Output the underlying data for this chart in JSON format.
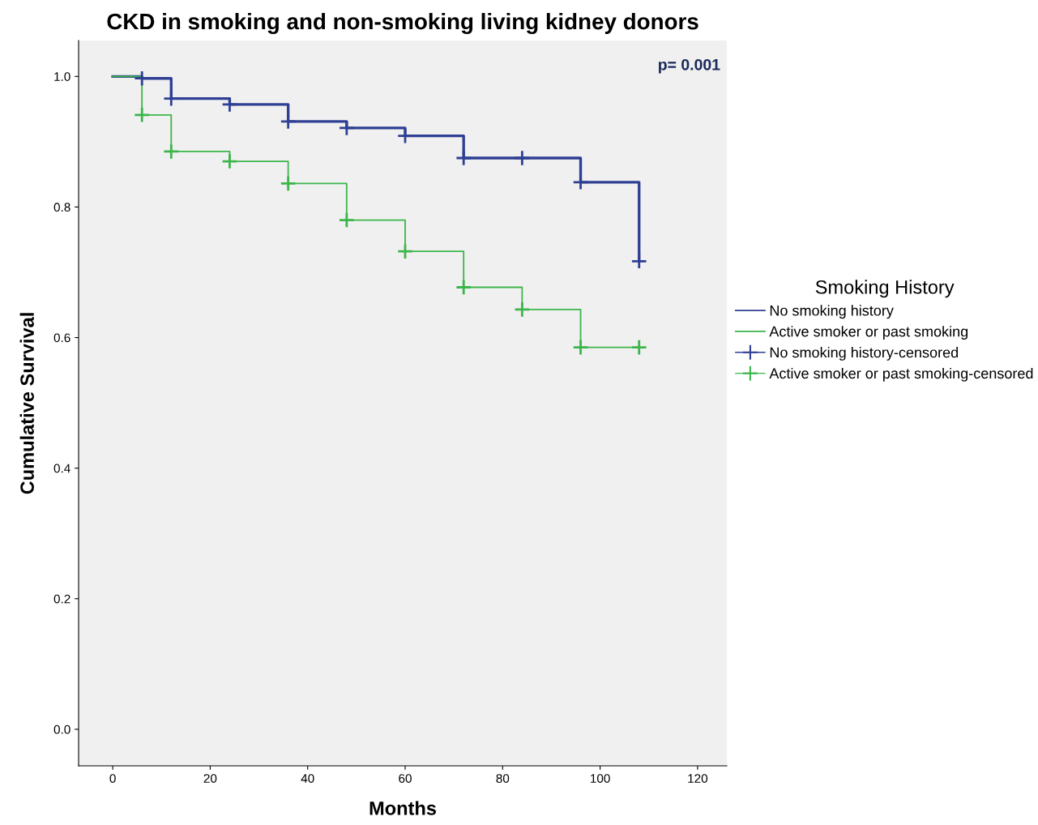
{
  "chart_data": {
    "type": "step",
    "title": "CKD in smoking and non-smoking living kidney donors",
    "xlabel": "Months",
    "ylabel": "Cumulative Survival",
    "legend_title": "Smoking History",
    "legend": "right",
    "grid": false,
    "annotations": [
      "p= 0.001"
    ],
    "xlim": [
      -7,
      126
    ],
    "ylim": [
      -0.056,
      1.055
    ],
    "xticks": [
      0,
      20,
      40,
      60,
      80,
      100,
      120
    ],
    "yticks": [
      {
        "value": 0,
        "label": "0.0"
      },
      {
        "value": 0.2,
        "label": "0.2"
      },
      {
        "value": 0.4,
        "label": "0.4"
      },
      {
        "value": 0.6,
        "label": "0.6"
      },
      {
        "value": 0.8,
        "label": "0.8"
      },
      {
        "value": 1,
        "label": "1.0"
      }
    ],
    "series": [
      {
        "name": "No smoking history",
        "color": "#2f3f94",
        "x": [
          0,
          6,
          12,
          24,
          36,
          48,
          60,
          72,
          84,
          96,
          108
        ],
        "values": [
          1.0,
          0.997,
          0.966,
          0.957,
          0.931,
          0.921,
          0.909,
          0.875,
          0.875,
          0.838,
          0.717
        ]
      },
      {
        "name": "Active smoker or past smoking",
        "color": "#3cb54a",
        "x": [
          0,
          6,
          12,
          24,
          36,
          48,
          60,
          72,
          84,
          96,
          108
        ],
        "values": [
          1.0,
          0.941,
          0.885,
          0.87,
          0.836,
          0.78,
          0.732,
          0.677,
          0.643,
          0.585,
          0.585
        ]
      },
      {
        "name": "No smoking history-censored",
        "type": "scatter",
        "color": "#2f3f94",
        "marker": "cross",
        "x": [
          6,
          12,
          24,
          36,
          48,
          60,
          72,
          84,
          96,
          108
        ],
        "values": [
          0.997,
          0.966,
          0.957,
          0.931,
          0.921,
          0.909,
          0.875,
          0.875,
          0.838,
          0.717
        ]
      },
      {
        "name": "Active smoker or past smoking-censored",
        "type": "scatter",
        "color": "#3cb54a",
        "marker": "cross",
        "x": [
          6,
          12,
          24,
          36,
          48,
          60,
          72,
          84,
          96,
          108
        ],
        "values": [
          0.941,
          0.885,
          0.87,
          0.836,
          0.78,
          0.732,
          0.677,
          0.643,
          0.585,
          0.585
        ]
      }
    ]
  }
}
